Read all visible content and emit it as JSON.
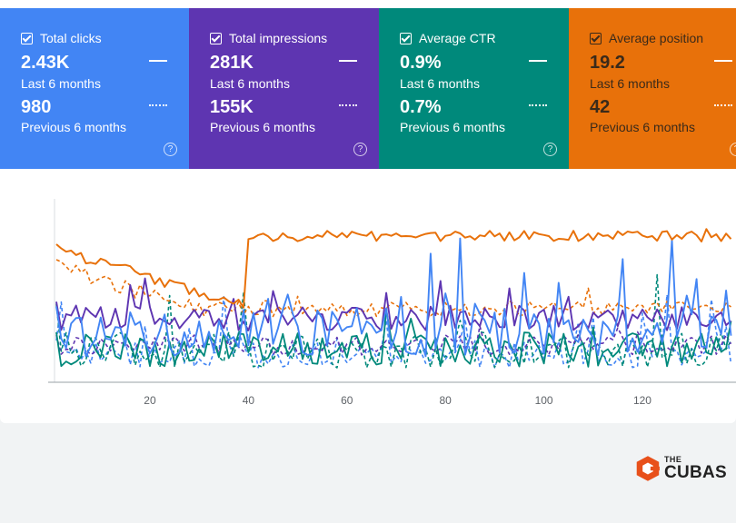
{
  "metrics": [
    {
      "key": "clicks",
      "label": "Total clicks",
      "current_value": "2.43K",
      "current_period": "Last 6 months",
      "previous_value": "980",
      "previous_period": "Previous 6 months",
      "color": "#4285f4"
    },
    {
      "key": "impressions",
      "label": "Total impressions",
      "current_value": "281K",
      "current_period": "Last 6 months",
      "previous_value": "155K",
      "previous_period": "Previous 6 months",
      "color": "#5e35b1"
    },
    {
      "key": "ctr",
      "label": "Average CTR",
      "current_value": "0.9%",
      "current_period": "Last 6 months",
      "previous_value": "0.7%",
      "previous_period": "Previous 6 months",
      "color": "#00897b"
    },
    {
      "key": "position",
      "label": "Average position",
      "current_value": "19.2",
      "current_period": "Last 6 months",
      "previous_value": "42",
      "previous_period": "Previous 6 months",
      "color": "#e8710a"
    }
  ],
  "help_glyph": "?",
  "brand": {
    "small": "THE",
    "big": "CUBAS"
  },
  "chart_data": {
    "type": "line",
    "x_ticks": [
      20,
      40,
      60,
      80,
      100,
      120
    ],
    "x_range": [
      1,
      138
    ],
    "series_colors": {
      "clicks_current": "#4285f4",
      "clicks_previous": "#4285f4",
      "impressions_current": "#5e35b1",
      "impressions_previous": "#5e35b1",
      "ctr_current": "#00897b",
      "ctr_previous": "#00897b",
      "position_current": "#e8710a",
      "position_previous": "#e8710a"
    }
  }
}
